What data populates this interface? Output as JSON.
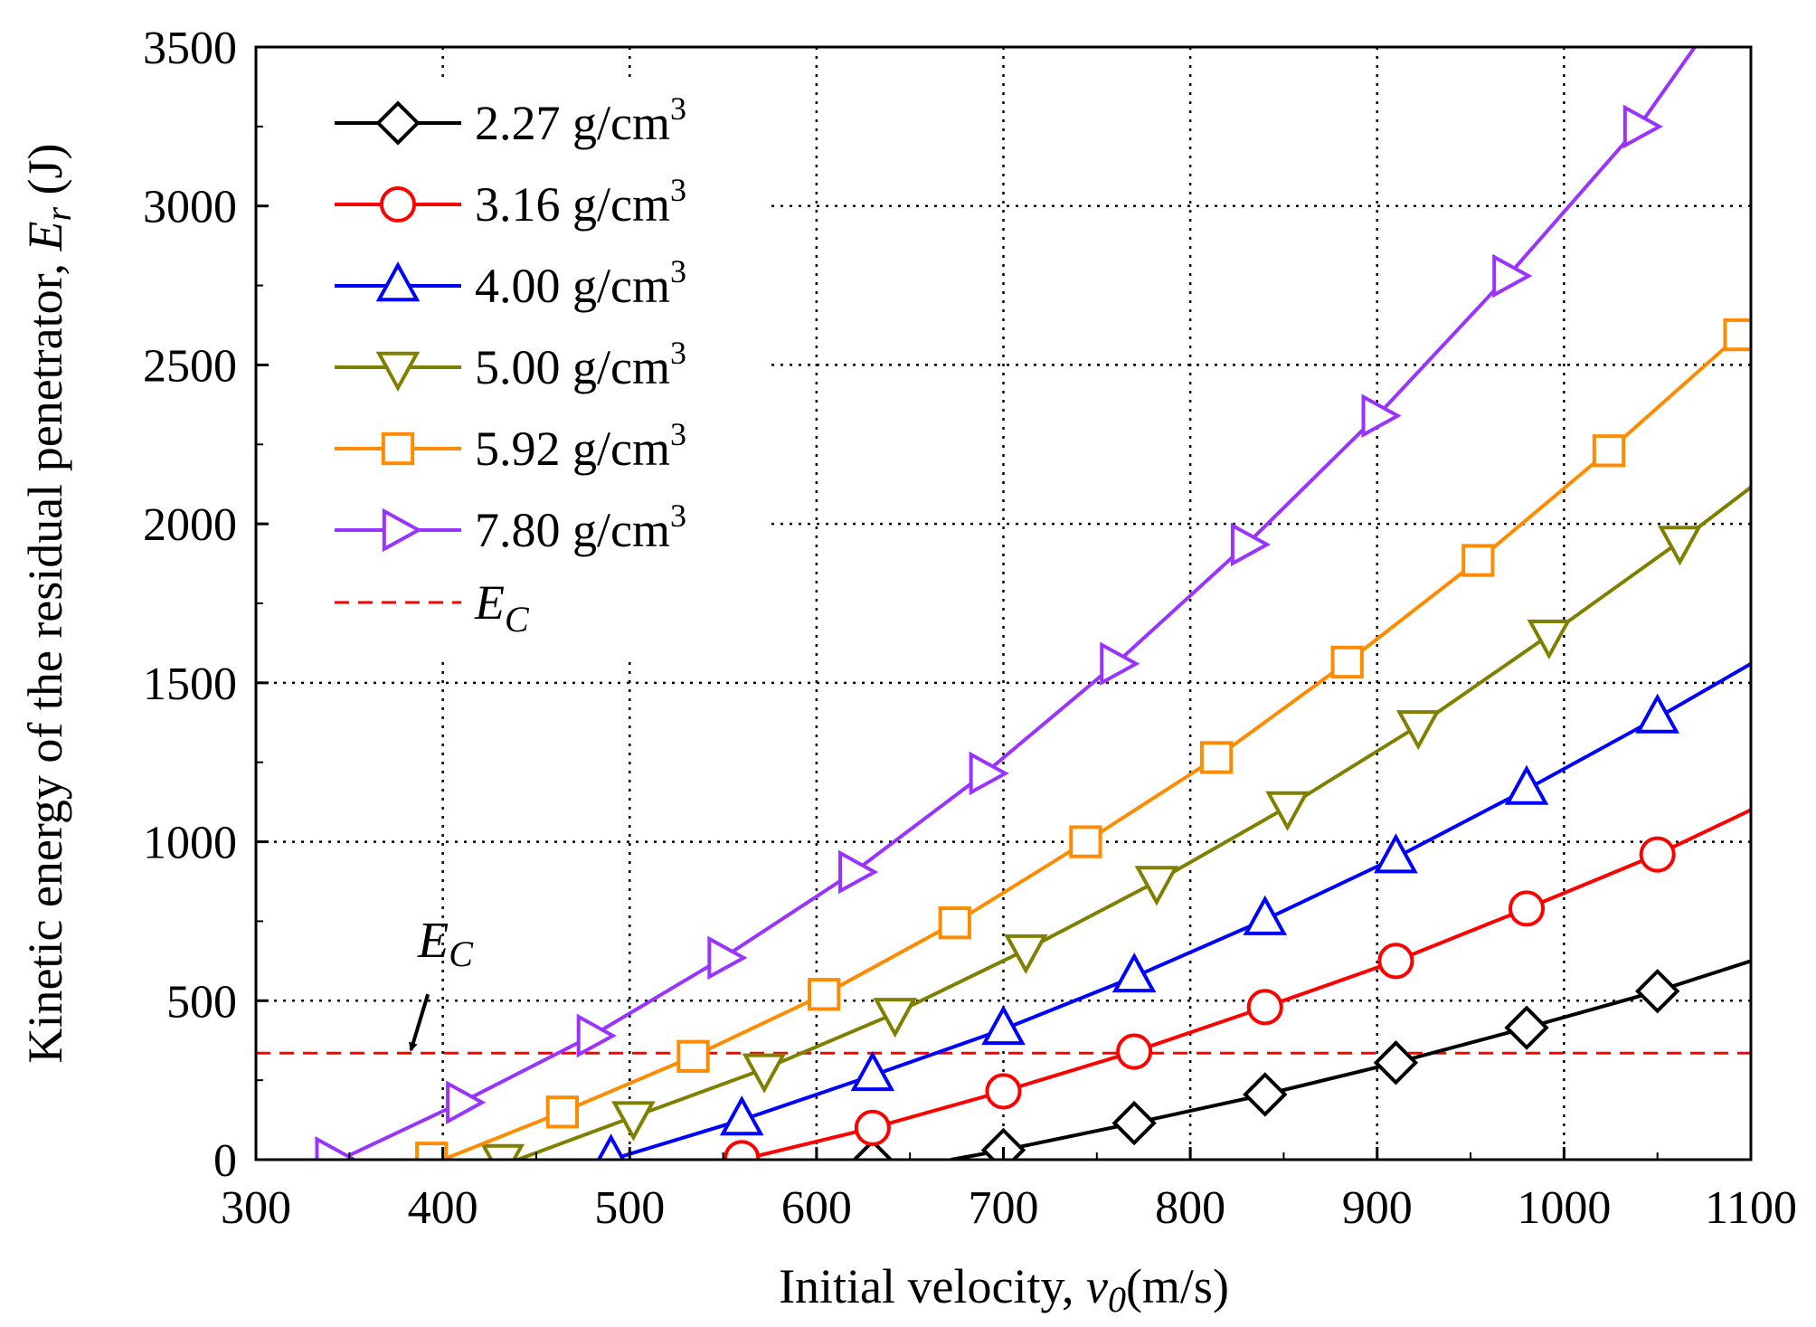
{
  "chart_data": {
    "type": "line",
    "xlabel": "Initial velocity, v0 (m/s)",
    "xlabel_parts": {
      "prefix": "Initial velocity, ",
      "var": "v",
      "sub": "0",
      "suffix": "(m/s)"
    },
    "ylabel": "Kinetic energy of the residual penetrator, Er (J)",
    "ylabel_parts": {
      "prefix": "Kinetic energy of the residual penetrator, ",
      "var": "E",
      "sub": "r",
      "suffix": " (J)"
    },
    "xlim": [
      300,
      1100
    ],
    "ylim": [
      0,
      3500
    ],
    "xticks": [
      300,
      400,
      500,
      600,
      700,
      800,
      900,
      1000,
      1100
    ],
    "yticks": [
      0,
      500,
      1000,
      1500,
      2000,
      2500,
      3000,
      3500
    ],
    "grid": true,
    "legend_position": "top-left",
    "series": [
      {
        "name": "2.27 g/cm3",
        "value_text": "2.27 g/cm",
        "sup": "3",
        "color": "#000000",
        "marker": "diamond",
        "line": [
          [
            672,
            0
          ],
          [
            700,
            30
          ],
          [
            770,
            115
          ],
          [
            840,
            205
          ],
          [
            910,
            305
          ],
          [
            980,
            415
          ],
          [
            1050,
            530
          ],
          [
            1100,
            625
          ]
        ],
        "markers": [
          [
            630,
            -5
          ],
          [
            700,
            30
          ],
          [
            770,
            115
          ],
          [
            840,
            205
          ],
          [
            910,
            305
          ],
          [
            980,
            415
          ],
          [
            1050,
            530
          ]
        ]
      },
      {
        "name": "3.16 g/cm3",
        "value_text": "3.16 g/cm",
        "sup": "3",
        "color": "#ff0000",
        "marker": "circle",
        "line": [
          [
            560,
            0
          ],
          [
            630,
            100
          ],
          [
            700,
            215
          ],
          [
            770,
            340
          ],
          [
            840,
            480
          ],
          [
            910,
            625
          ],
          [
            980,
            790
          ],
          [
            1050,
            960
          ],
          [
            1100,
            1100
          ]
        ],
        "markers": [
          [
            560,
            5
          ],
          [
            630,
            100
          ],
          [
            700,
            215
          ],
          [
            770,
            340
          ],
          [
            840,
            480
          ],
          [
            910,
            625
          ],
          [
            980,
            790
          ],
          [
            1050,
            960
          ]
        ]
      },
      {
        "name": "4.00 g/cm3",
        "value_text": "4.00 g/cm",
        "sup": "3",
        "color": "#0000ff",
        "marker": "triangle-up",
        "line": [
          [
            490,
            0
          ],
          [
            560,
            125
          ],
          [
            630,
            265
          ],
          [
            700,
            410
          ],
          [
            770,
            575
          ],
          [
            840,
            755
          ],
          [
            910,
            950
          ],
          [
            980,
            1165
          ],
          [
            1050,
            1390
          ],
          [
            1100,
            1560
          ]
        ],
        "markers": [
          [
            490,
            5
          ],
          [
            560,
            125
          ],
          [
            630,
            265
          ],
          [
            700,
            410
          ],
          [
            770,
            575
          ],
          [
            840,
            755
          ],
          [
            910,
            950
          ],
          [
            980,
            1165
          ],
          [
            1050,
            1390
          ]
        ]
      },
      {
        "name": "5.00 g/cm3",
        "value_text": "5.00 g/cm",
        "sup": "3",
        "color": "#808000",
        "marker": "triangle-down",
        "line": [
          [
            440,
            0
          ],
          [
            502,
            135
          ],
          [
            572,
            285
          ],
          [
            642,
            460
          ],
          [
            712,
            660
          ],
          [
            782,
            875
          ],
          [
            852,
            1110
          ],
          [
            922,
            1365
          ],
          [
            992,
            1650
          ],
          [
            1062,
            1945
          ],
          [
            1100,
            2115
          ]
        ],
        "markers": [
          [
            432,
            0
          ],
          [
            502,
            135
          ],
          [
            572,
            285
          ],
          [
            642,
            460
          ],
          [
            712,
            660
          ],
          [
            782,
            875
          ],
          [
            852,
            1110
          ],
          [
            922,
            1365
          ],
          [
            992,
            1650
          ],
          [
            1062,
            1945
          ]
        ]
      },
      {
        "name": "5.92 g/cm3",
        "value_text": "5.92 g/cm",
        "sup": "3",
        "color": "#ff8c00",
        "marker": "square",
        "line": [
          [
            400,
            0
          ],
          [
            464,
            150
          ],
          [
            534,
            325
          ],
          [
            604,
            520
          ],
          [
            674,
            745
          ],
          [
            744,
            1000
          ],
          [
            814,
            1265
          ],
          [
            884,
            1565
          ],
          [
            954,
            1885
          ],
          [
            1024,
            2230
          ],
          [
            1094,
            2595
          ],
          [
            1100,
            2620
          ]
        ],
        "markers": [
          [
            394,
            5
          ],
          [
            464,
            150
          ],
          [
            534,
            325
          ],
          [
            604,
            520
          ],
          [
            674,
            745
          ],
          [
            744,
            1000
          ],
          [
            814,
            1265
          ],
          [
            884,
            1565
          ],
          [
            954,
            1885
          ],
          [
            1024,
            2230
          ],
          [
            1094,
            2595
          ]
        ]
      },
      {
        "name": "7.80 g/cm3",
        "value_text": "7.80 g/cm",
        "sup": "3",
        "color": "#9933ff",
        "marker": "triangle-right",
        "line": [
          [
            345,
            0
          ],
          [
            410,
            180
          ],
          [
            480,
            390
          ],
          [
            550,
            635
          ],
          [
            620,
            905
          ],
          [
            690,
            1215
          ],
          [
            760,
            1560
          ],
          [
            830,
            1935
          ],
          [
            900,
            2340
          ],
          [
            970,
            2780
          ],
          [
            1040,
            3250
          ],
          [
            1070,
            3500
          ]
        ],
        "markers": [
          [
            340,
            5
          ],
          [
            410,
            180
          ],
          [
            480,
            390
          ],
          [
            550,
            635
          ],
          [
            620,
            905
          ],
          [
            690,
            1215
          ],
          [
            760,
            1560
          ],
          [
            830,
            1935
          ],
          [
            900,
            2340
          ],
          [
            970,
            2780
          ],
          [
            1040,
            3250
          ]
        ]
      }
    ],
    "reference_line": {
      "name": "EC",
      "var": "E",
      "sub": "C",
      "y": 335,
      "color": "#ff0000",
      "style": "dashed"
    },
    "annotation": {
      "var": "E",
      "sub": "C",
      "arrow_from": [
        392,
        520
      ],
      "arrow_to": [
        383,
        345
      ]
    }
  }
}
